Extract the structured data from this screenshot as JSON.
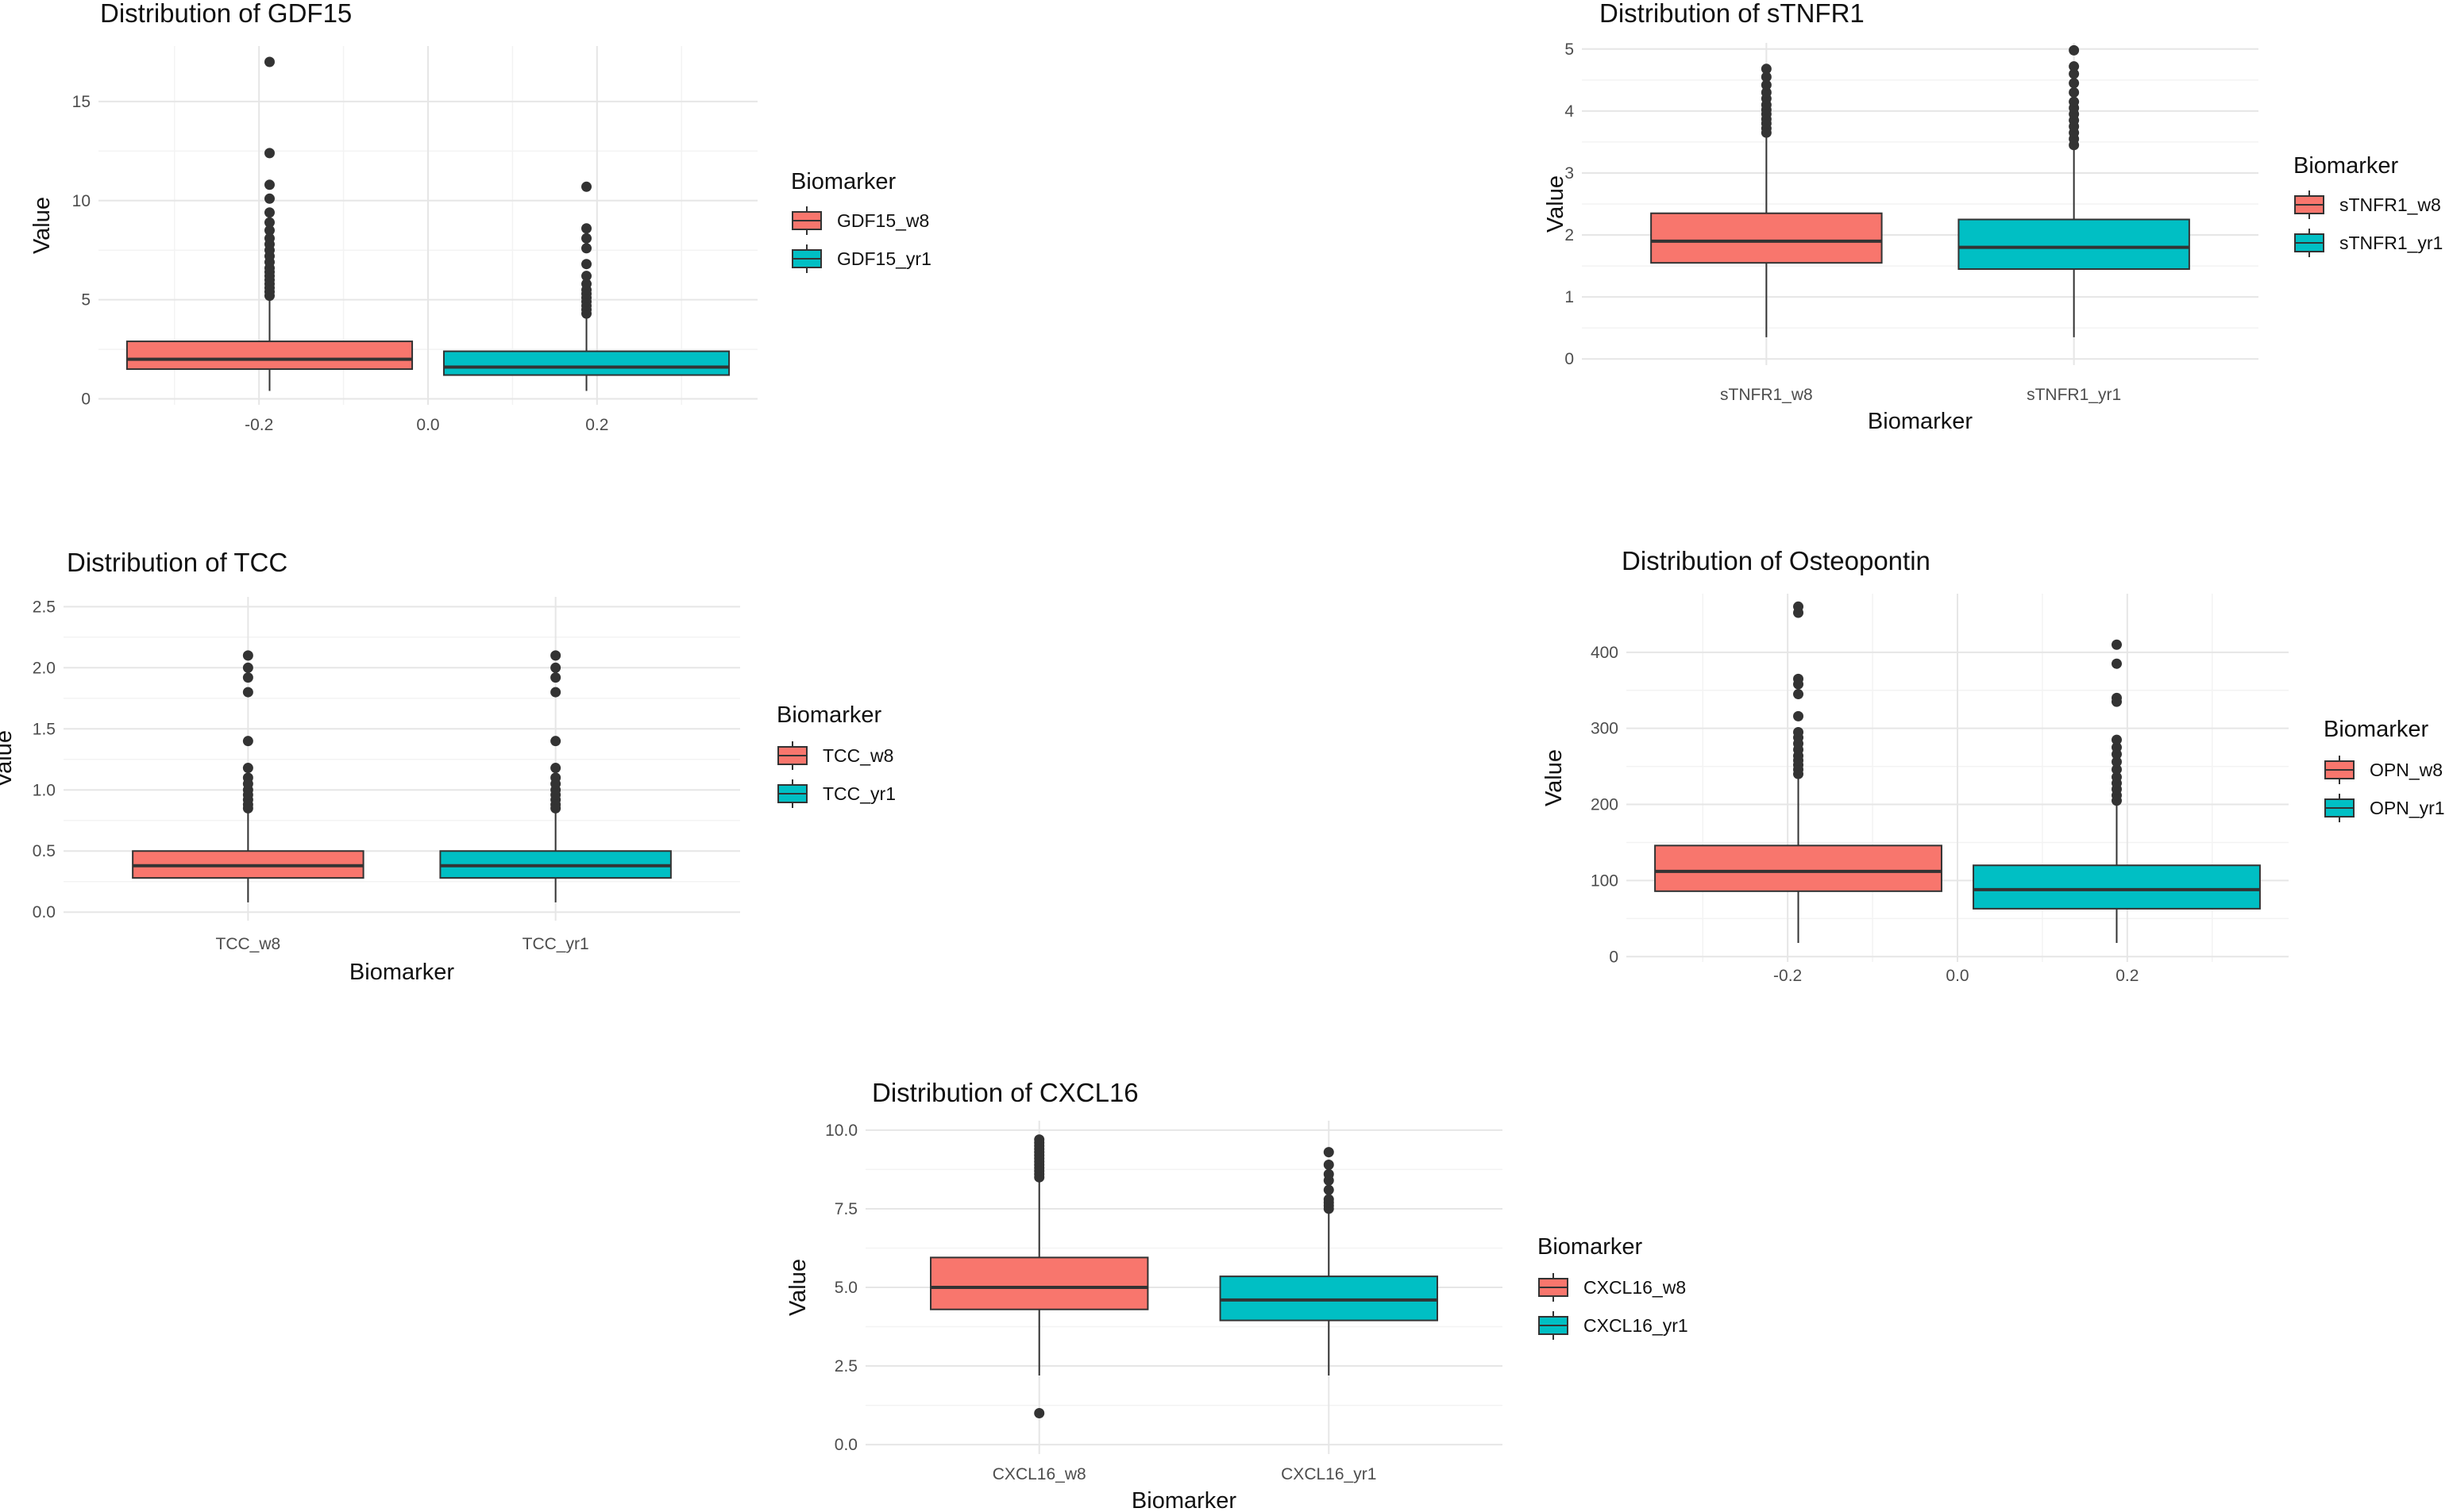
{
  "chart_data": [
    {
      "id": "gdf15",
      "type": "boxplot",
      "title": "Distribution of GDF15",
      "xlabel": "",
      "ylabel": "Value",
      "x_axis": "numeric",
      "xlim": [
        -0.39,
        0.39
      ],
      "xticks": [
        -0.2,
        0.0,
        0.2
      ],
      "xtick_labels": [
        "-0.2",
        "0.0",
        "0.2"
      ],
      "ylim": [
        -0.3,
        17.8
      ],
      "yticks": [
        0,
        5,
        10,
        15
      ],
      "ytick_labels": [
        "0",
        "5",
        "10",
        "15"
      ],
      "legend": {
        "title": "Biomarker",
        "position": "right"
      },
      "grid": true,
      "series": [
        {
          "name": "GDF15_w8",
          "color": "#F8766D",
          "center": -0.1875,
          "width": 0.3375,
          "q1": 1.5,
          "median": 2.0,
          "q3": 2.9,
          "whisker_low": 0.4,
          "whisker_high": 5.1,
          "outliers": [
            5.2,
            5.4,
            5.6,
            5.8,
            6.0,
            6.2,
            6.4,
            6.6,
            6.9,
            7.2,
            7.5,
            7.8,
            8.1,
            8.5,
            8.9,
            9.4,
            10.1,
            10.8,
            12.4,
            17.0
          ]
        },
        {
          "name": "GDF15_yr1",
          "color": "#00BFC4",
          "center": 0.1875,
          "width": 0.3375,
          "q1": 1.2,
          "median": 1.6,
          "q3": 2.4,
          "whisker_low": 0.4,
          "whisker_high": 4.2,
          "outliers": [
            4.3,
            4.5,
            4.7,
            4.9,
            5.1,
            5.3,
            5.5,
            5.8,
            6.2,
            6.8,
            7.6,
            8.1,
            8.6,
            10.7
          ]
        }
      ]
    },
    {
      "id": "stnfr1",
      "type": "boxplot",
      "title": "Distribution of sTNFR1",
      "xlabel": "Biomarker",
      "ylabel": "Value",
      "x_axis": "categorical",
      "categories": [
        "sTNFR1_w8",
        "sTNFR1_yr1"
      ],
      "ylim": [
        -0.1,
        5.1
      ],
      "yticks": [
        0,
        1,
        2,
        3,
        4,
        5
      ],
      "ytick_labels": [
        "0",
        "1",
        "2",
        "3",
        "4",
        "5"
      ],
      "legend": {
        "title": "Biomarker",
        "position": "right"
      },
      "grid": true,
      "series": [
        {
          "name": "sTNFR1_w8",
          "color": "#F8766D",
          "q1": 1.55,
          "median": 1.9,
          "q3": 2.35,
          "whisker_low": 0.35,
          "whisker_high": 3.6,
          "outliers": [
            3.65,
            3.72,
            3.8,
            3.87,
            3.95,
            4.02,
            4.1,
            4.2,
            4.3,
            4.42,
            4.55,
            4.68
          ]
        },
        {
          "name": "sTNFR1_yr1",
          "color": "#00BFC4",
          "q1": 1.45,
          "median": 1.8,
          "q3": 2.25,
          "whisker_low": 0.35,
          "whisker_high": 3.4,
          "outliers": [
            3.45,
            3.55,
            3.65,
            3.75,
            3.85,
            3.95,
            4.05,
            4.15,
            4.3,
            4.45,
            4.6,
            4.72,
            4.98
          ]
        }
      ]
    },
    {
      "id": "tcc",
      "type": "boxplot",
      "title": "Distribution of TCC",
      "xlabel": "Biomarker",
      "ylabel": "Value",
      "x_axis": "categorical",
      "categories": [
        "TCC_w8",
        "TCC_yr1"
      ],
      "ylim": [
        -0.07,
        2.58
      ],
      "yticks": [
        0,
        0.5,
        1,
        1.5,
        2,
        2.5
      ],
      "ytick_labels": [
        "0.0",
        "0.5",
        "1.0",
        "1.5",
        "2.0",
        "2.5"
      ],
      "legend": {
        "title": "Biomarker",
        "position": "right"
      },
      "grid": true,
      "series": [
        {
          "name": "TCC_w8",
          "color": "#F8766D",
          "q1": 0.28,
          "median": 0.38,
          "q3": 0.5,
          "whisker_low": 0.08,
          "whisker_high": 0.82,
          "outliers": [
            0.85,
            0.88,
            0.92,
            0.96,
            1.0,
            1.05,
            1.1,
            1.18,
            1.4,
            1.8,
            1.92,
            2.0,
            2.1
          ]
        },
        {
          "name": "TCC_yr1",
          "color": "#00BFC4",
          "q1": 0.28,
          "median": 0.38,
          "q3": 0.5,
          "whisker_low": 0.08,
          "whisker_high": 0.82,
          "outliers": [
            0.85,
            0.88,
            0.92,
            0.96,
            1.0,
            1.05,
            1.1,
            1.18,
            1.4,
            1.8,
            1.92,
            2.0,
            2.1
          ]
        }
      ]
    },
    {
      "id": "osteopontin",
      "type": "boxplot",
      "title": "Distribution of Osteopontin",
      "xlabel": "",
      "ylabel": "Value",
      "x_axis": "numeric",
      "xlim": [
        -0.39,
        0.39
      ],
      "xticks": [
        -0.2,
        0.0,
        0.2
      ],
      "xtick_labels": [
        "-0.2",
        "0.0",
        "0.2"
      ],
      "ylim": [
        -7,
        477
      ],
      "yticks": [
        0,
        100,
        200,
        300,
        400
      ],
      "ytick_labels": [
        "0",
        "100",
        "200",
        "300",
        "400"
      ],
      "legend": {
        "title": "Biomarker",
        "position": "right"
      },
      "grid": true,
      "series": [
        {
          "name": "OPN_w8",
          "color": "#F8766D",
          "center": -0.1875,
          "width": 0.3375,
          "q1": 86,
          "median": 112,
          "q3": 146,
          "whisker_low": 18,
          "whisker_high": 235,
          "outliers": [
            240,
            246,
            252,
            258,
            264,
            272,
            280,
            288,
            295,
            316,
            345,
            358,
            365,
            452,
            460
          ]
        },
        {
          "name": "OPN_yr1",
          "color": "#00BFC4",
          "center": 0.1875,
          "width": 0.3375,
          "q1": 63,
          "median": 88,
          "q3": 120,
          "whisker_low": 18,
          "whisker_high": 200,
          "outliers": [
            205,
            212,
            220,
            228,
            236,
            246,
            256,
            266,
            275,
            285,
            335,
            340,
            385,
            410
          ]
        }
      ]
    },
    {
      "id": "cxcl16",
      "type": "boxplot",
      "title": "Distribution of CXCL16",
      "xlabel": "Biomarker",
      "ylabel": "Value",
      "x_axis": "categorical",
      "categories": [
        "CXCL16_w8",
        "CXCL16_yr1"
      ],
      "ylim": [
        -0.3,
        10.3
      ],
      "yticks": [
        0,
        2.5,
        5,
        7.5,
        10
      ],
      "ytick_labels": [
        "0.0",
        "2.5",
        "5.0",
        "7.5",
        "10.0"
      ],
      "legend": {
        "title": "Biomarker",
        "position": "right"
      },
      "grid": true,
      "series": [
        {
          "name": "CXCL16_w8",
          "color": "#F8766D",
          "q1": 4.3,
          "median": 5.0,
          "q3": 5.95,
          "whisker_low": 2.2,
          "whisker_high": 8.4,
          "outliers": [
            1.0,
            8.5,
            8.6,
            8.7,
            8.8,
            8.9,
            9.0,
            9.1,
            9.2,
            9.3,
            9.4,
            9.5,
            9.6,
            9.7
          ]
        },
        {
          "name": "CXCL16_yr1",
          "color": "#00BFC4",
          "q1": 3.95,
          "median": 4.6,
          "q3": 5.35,
          "whisker_low": 2.2,
          "whisker_high": 7.4,
          "outliers": [
            7.5,
            7.6,
            7.7,
            7.8,
            8.1,
            8.4,
            8.6,
            8.9,
            9.3
          ]
        }
      ]
    }
  ]
}
